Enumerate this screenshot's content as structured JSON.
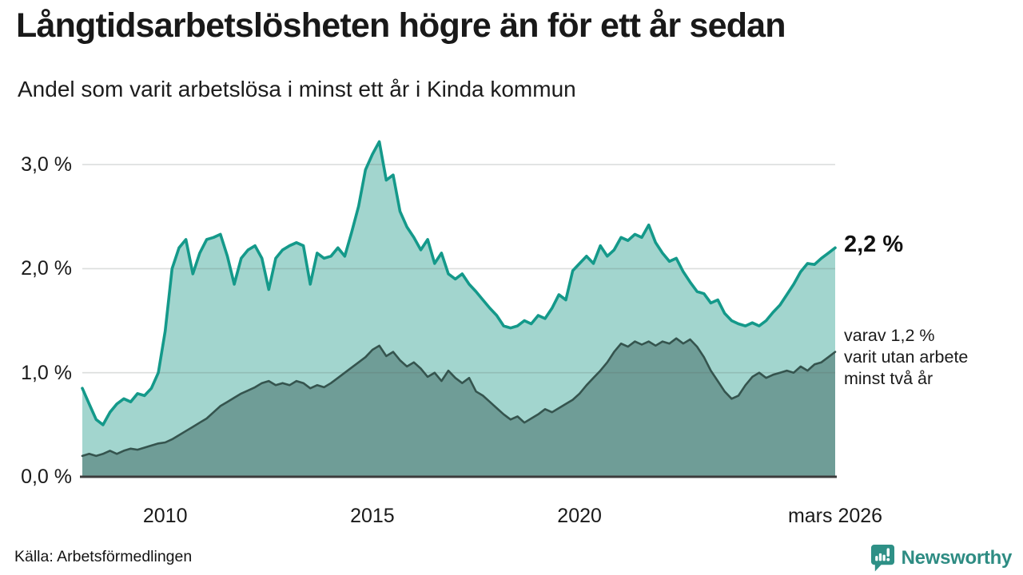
{
  "header": {
    "title": "Långtidsarbetslösheten högre än för ett år sedan",
    "subtitle": "Andel som varit arbetslösa i minst ett år i Kinda kommun"
  },
  "chart_data": {
    "type": "area",
    "title": "Långtidsarbetslösheten högre än för ett år sedan",
    "subtitle": "Andel som varit arbetslösa i minst ett år i Kinda kommun",
    "unit": "%",
    "grid": true,
    "x_start": 2008.0,
    "x_end": 2026.17,
    "ylim": [
      0,
      3.4
    ],
    "yticks": [
      {
        "value": 0,
        "label": "0,0 %"
      },
      {
        "value": 1,
        "label": "1,0 %"
      },
      {
        "value": 2,
        "label": "2,0 %"
      },
      {
        "value": 3,
        "label": "3,0 %"
      }
    ],
    "xticks": [
      {
        "value": 2010,
        "label": "2010"
      },
      {
        "value": 2015,
        "label": "2015"
      },
      {
        "value": 2020,
        "label": "2020"
      },
      {
        "value": 2026.17,
        "label": "mars 2026"
      }
    ],
    "series": [
      {
        "name": "arbetslösa minst ett år",
        "latest_label": "2,2 %",
        "latest_value": 2.2,
        "stroke": "#14998a",
        "fill": "#a2d5ce",
        "stroke_width": 3.6,
        "values": [
          0.85,
          0.7,
          0.55,
          0.5,
          0.62,
          0.7,
          0.75,
          0.72,
          0.8,
          0.78,
          0.85,
          1.0,
          1.4,
          2.0,
          2.2,
          2.28,
          1.95,
          2.15,
          2.28,
          2.3,
          2.33,
          2.12,
          1.85,
          2.1,
          2.18,
          2.22,
          2.1,
          1.8,
          2.1,
          2.18,
          2.22,
          2.25,
          2.22,
          1.85,
          2.15,
          2.1,
          2.12,
          2.2,
          2.12,
          2.35,
          2.6,
          2.95,
          3.1,
          3.22,
          2.85,
          2.9,
          2.55,
          2.4,
          2.3,
          2.18,
          2.28,
          2.05,
          2.15,
          1.95,
          1.9,
          1.95,
          1.85,
          1.78,
          1.7,
          1.62,
          1.55,
          1.45,
          1.43,
          1.45,
          1.5,
          1.47,
          1.55,
          1.52,
          1.62,
          1.75,
          1.7,
          1.98,
          2.05,
          2.12,
          2.05,
          2.22,
          2.12,
          2.18,
          2.3,
          2.27,
          2.33,
          2.3,
          2.42,
          2.25,
          2.15,
          2.07,
          2.1,
          1.97,
          1.87,
          1.78,
          1.76,
          1.67,
          1.7,
          1.57,
          1.5,
          1.47,
          1.45,
          1.48,
          1.45,
          1.5,
          1.58,
          1.65,
          1.75,
          1.85,
          1.97,
          2.05,
          2.04,
          2.1,
          2.15,
          2.2
        ]
      },
      {
        "name": "arbetslösa minst två år",
        "latest_label": "1,2 %",
        "latest_value": 1.2,
        "stroke": "#35544e",
        "fill": "#6f9d97",
        "stroke_width": 2.6,
        "values": [
          0.2,
          0.22,
          0.2,
          0.22,
          0.25,
          0.22,
          0.25,
          0.27,
          0.26,
          0.28,
          0.3,
          0.32,
          0.33,
          0.36,
          0.4,
          0.44,
          0.48,
          0.52,
          0.56,
          0.62,
          0.68,
          0.72,
          0.76,
          0.8,
          0.83,
          0.86,
          0.9,
          0.92,
          0.88,
          0.9,
          0.88,
          0.92,
          0.9,
          0.85,
          0.88,
          0.86,
          0.9,
          0.95,
          1.0,
          1.05,
          1.1,
          1.15,
          1.22,
          1.26,
          1.16,
          1.2,
          1.12,
          1.06,
          1.1,
          1.04,
          0.96,
          1.0,
          0.92,
          1.02,
          0.95,
          0.9,
          0.95,
          0.82,
          0.78,
          0.72,
          0.66,
          0.6,
          0.55,
          0.58,
          0.52,
          0.56,
          0.6,
          0.65,
          0.62,
          0.66,
          0.7,
          0.74,
          0.8,
          0.88,
          0.95,
          1.02,
          1.1,
          1.2,
          1.28,
          1.25,
          1.3,
          1.27,
          1.3,
          1.26,
          1.3,
          1.28,
          1.33,
          1.28,
          1.32,
          1.25,
          1.15,
          1.02,
          0.92,
          0.82,
          0.75,
          0.78,
          0.88,
          0.96,
          1.0,
          0.95,
          0.98,
          1.0,
          1.02,
          1.0,
          1.06,
          1.02,
          1.08,
          1.1,
          1.15,
          1.2
        ]
      }
    ],
    "annotations": {
      "value_label": "2,2 %",
      "note": "varav 1,2 %\nvarit utan arbete\nminst två år"
    }
  },
  "footer": {
    "source": "Källa: Arbetsförmedlingen",
    "brand": "Newsworthy"
  },
  "colors": {
    "accent_teal": "#14998a",
    "fill_light": "#a2d5ce",
    "fill_dark": "#6f9d97",
    "line_dark": "#35544e",
    "brand": "#2e8c83",
    "gridline": "#e3e3e3",
    "baseline": "#3c3c3c",
    "text": "#1a1a1a"
  }
}
